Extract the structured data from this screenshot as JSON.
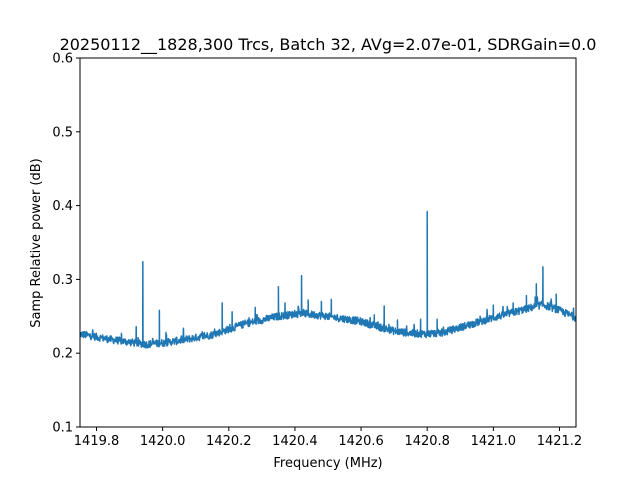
{
  "chart_data": {
    "type": "line",
    "title": "20250112__1828,300 Trcs, Batch 32, AVg=2.07e-01, SDRGain=0.0",
    "xlabel": "Frequency (MHz)",
    "ylabel": "Samp Relative power (dB)",
    "xlim": [
      1419.75,
      1421.25
    ],
    "ylim": [
      0.1,
      0.6
    ],
    "grid": false,
    "legend": "none",
    "x_ticks": [
      "1419.8",
      "1420.0",
      "1420.2",
      "1420.4",
      "1420.6",
      "1420.8",
      "1421.0",
      "1421.2"
    ],
    "x_tick_values": [
      1419.8,
      1420.0,
      1420.2,
      1420.4,
      1420.6,
      1420.8,
      1421.0,
      1421.2
    ],
    "y_ticks": [
      "0.1",
      "0.2",
      "0.3",
      "0.4",
      "0.5",
      "0.6"
    ],
    "y_tick_values": [
      0.1,
      0.2,
      0.3,
      0.4,
      0.5,
      0.6
    ],
    "line_color": "#1f77b4",
    "baseline_points": [
      [
        1419.75,
        0.226
      ],
      [
        1419.85,
        0.218
      ],
      [
        1419.95,
        0.212
      ],
      [
        1420.0,
        0.214
      ],
      [
        1420.05,
        0.217
      ],
      [
        1420.15,
        0.225
      ],
      [
        1420.25,
        0.24
      ],
      [
        1420.35,
        0.25
      ],
      [
        1420.42,
        0.254
      ],
      [
        1420.5,
        0.25
      ],
      [
        1420.6,
        0.243
      ],
      [
        1420.65,
        0.236
      ],
      [
        1420.7,
        0.23
      ],
      [
        1420.75,
        0.227
      ],
      [
        1420.8,
        0.226
      ],
      [
        1420.85,
        0.228
      ],
      [
        1420.9,
        0.235
      ],
      [
        1421.0,
        0.248
      ],
      [
        1421.1,
        0.26
      ],
      [
        1421.15,
        0.266
      ],
      [
        1421.2,
        0.258
      ],
      [
        1421.25,
        0.248
      ]
    ],
    "spikes": [
      [
        1419.92,
        0.236
      ],
      [
        1419.94,
        0.324
      ],
      [
        1419.99,
        0.258
      ],
      [
        1420.01,
        0.228
      ],
      [
        1420.18,
        0.268
      ],
      [
        1420.21,
        0.256
      ],
      [
        1420.28,
        0.262
      ],
      [
        1420.35,
        0.29
      ],
      [
        1420.37,
        0.268
      ],
      [
        1420.42,
        0.305
      ],
      [
        1420.44,
        0.272
      ],
      [
        1420.48,
        0.27
      ],
      [
        1420.51,
        0.273
      ],
      [
        1420.64,
        0.252
      ],
      [
        1420.67,
        0.264
      ],
      [
        1420.71,
        0.245
      ],
      [
        1420.78,
        0.246
      ],
      [
        1420.8,
        0.392
      ],
      [
        1420.83,
        0.246
      ],
      [
        1420.96,
        0.25
      ],
      [
        1421.0,
        0.265
      ],
      [
        1421.06,
        0.268
      ],
      [
        1421.1,
        0.278
      ],
      [
        1421.13,
        0.294
      ],
      [
        1421.15,
        0.317
      ],
      [
        1421.19,
        0.28
      ]
    ]
  }
}
